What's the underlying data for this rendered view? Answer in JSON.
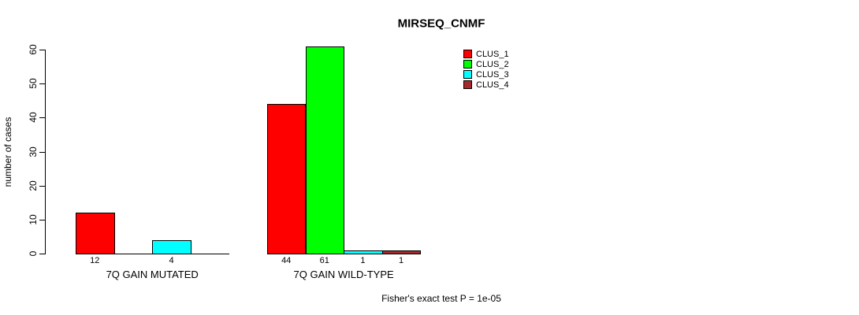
{
  "title": "MIRSEQ_CNMF",
  "y_axis_title": "number of cases",
  "footer": "Fisher's exact test P = 1e-05",
  "chart_data": {
    "type": "bar",
    "title": "MIRSEQ_CNMF",
    "xlabel": "",
    "ylabel": "number of cases",
    "ylim": [
      0,
      60
    ],
    "yticks": [
      0,
      10,
      20,
      30,
      40,
      50,
      60
    ],
    "grid": false,
    "legend_position": "top-right",
    "categories": [
      "7Q GAIN MUTATED",
      "7Q GAIN WILD-TYPE"
    ],
    "series": [
      {
        "name": "CLUS_1",
        "color": "#FF0000",
        "values": [
          12,
          44
        ]
      },
      {
        "name": "CLUS_2",
        "color": "#00FF00",
        "values": [
          0,
          61
        ]
      },
      {
        "name": "CLUS_3",
        "color": "#00FFFF",
        "values": [
          4,
          1
        ]
      },
      {
        "name": "CLUS_4",
        "color": "#A52A2A",
        "values": [
          0,
          1
        ]
      }
    ],
    "bar_value_labels_shown_if_nonzero": true,
    "annotation": "Fisher's exact test P = 1e-05"
  }
}
